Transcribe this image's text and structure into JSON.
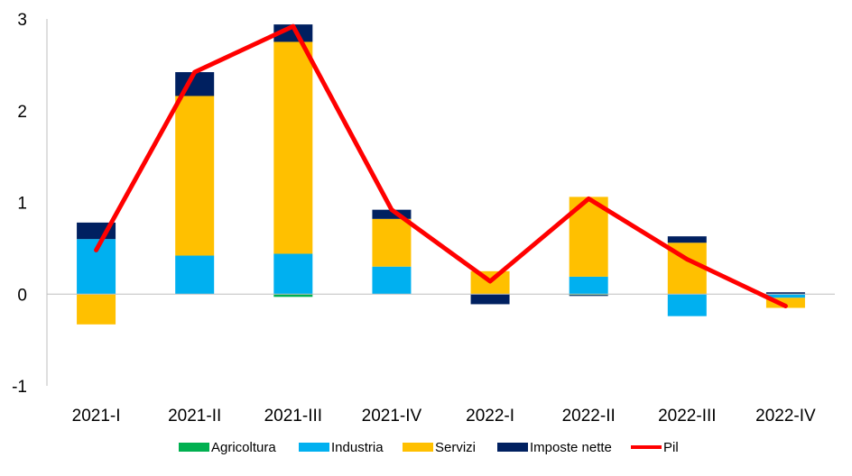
{
  "chart_data": {
    "type": "bar",
    "stacked": true,
    "categories": [
      "2021-I",
      "2021-II",
      "2021-III",
      "2021-IV",
      "2022-I",
      "2022-II",
      "2022-III",
      "2022-IV"
    ],
    "ylim": [
      -1,
      3
    ],
    "yticks": [
      "-1",
      "0",
      "1",
      "2",
      "3"
    ],
    "grid": false,
    "legend_position": "bottom",
    "series": [
      {
        "name": "Agricoltura",
        "kind": "bar",
        "color": "#00b050",
        "values": [
          0.0,
          0.0,
          -0.03,
          0.0,
          0.0,
          -0.01,
          0.0,
          0.0
        ]
      },
      {
        "name": "Industria",
        "kind": "bar",
        "color": "#00b0f0",
        "values": [
          0.6,
          0.42,
          0.44,
          0.3,
          0.0,
          0.19,
          -0.24,
          -0.04
        ]
      },
      {
        "name": "Servizi",
        "kind": "bar",
        "color": "#ffc000",
        "values": [
          -0.33,
          1.74,
          2.31,
          0.52,
          0.25,
          0.87,
          0.56,
          -0.11
        ]
      },
      {
        "name": "Imposte nette",
        "kind": "bar",
        "color": "#002060",
        "values": [
          0.18,
          0.26,
          0.19,
          0.1,
          -0.11,
          -0.01,
          0.07,
          0.02
        ]
      },
      {
        "name": "Pil",
        "kind": "line",
        "color": "#ff0000",
        "values": [
          0.48,
          2.42,
          2.92,
          0.92,
          0.14,
          1.04,
          0.38,
          -0.13
        ]
      }
    ]
  }
}
